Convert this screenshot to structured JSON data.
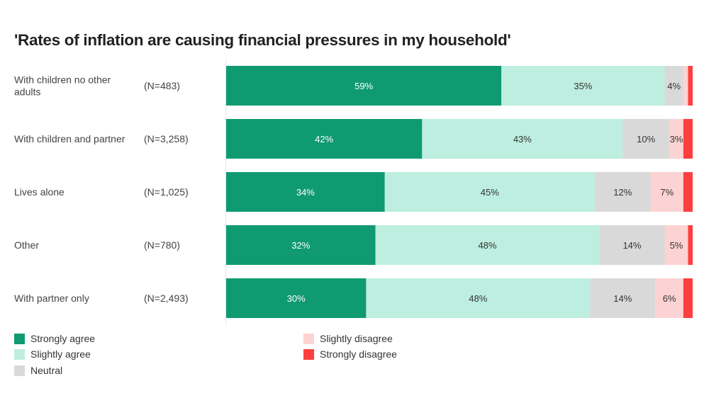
{
  "chart_data": {
    "type": "bar",
    "orientation": "horizontal-stacked-100",
    "title": "'Rates of inflation are causing financial pressures in my household'",
    "categories": [
      {
        "label": [
          "With children no other",
          "adults"
        ],
        "n": "(N=483)"
      },
      {
        "label": [
          "With children and partner"
        ],
        "n": "(N=3,258)"
      },
      {
        "label": [
          "Lives alone"
        ],
        "n": "(N=1,025)"
      },
      {
        "label": [
          "Other"
        ],
        "n": "(N=780)"
      },
      {
        "label": [
          "With partner only"
        ],
        "n": "(N=2,493)"
      }
    ],
    "series": [
      {
        "name": "Strongly agree",
        "color": "#0f9a72",
        "text_color": "#ffffff",
        "values": [
          59,
          42,
          34,
          32,
          30
        ]
      },
      {
        "name": "Slightly agree",
        "color": "#bdeedf",
        "text_color": "#333333",
        "values": [
          35,
          43,
          45,
          48,
          48
        ]
      },
      {
        "name": "Neutral",
        "color": "#d9d9d9",
        "text_color": "#333333",
        "values": [
          4,
          10,
          12,
          14,
          14
        ]
      },
      {
        "name": "Slightly disagree",
        "color": "#fcd3d2",
        "text_color": "#333333",
        "values": [
          1,
          3,
          7,
          5,
          6
        ]
      },
      {
        "name": "Strongly disagree",
        "color": "#fd3f3f",
        "text_color": "#333333",
        "values": [
          1,
          2,
          2,
          1,
          2
        ]
      }
    ],
    "label_min_value": 3,
    "xlim": [
      0,
      100
    ],
    "legend_position": "bottom"
  }
}
